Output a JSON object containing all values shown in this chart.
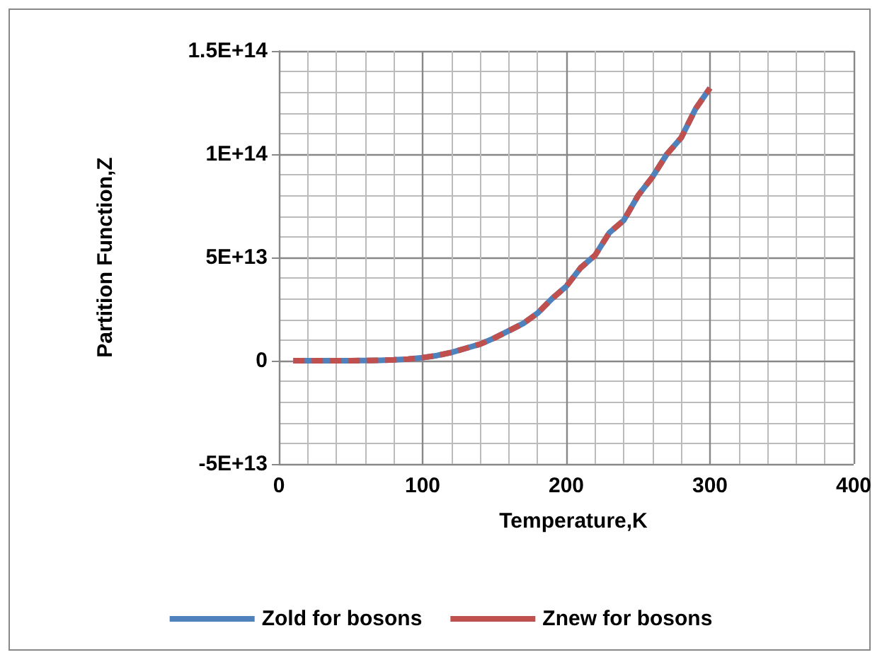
{
  "chart_data": {
    "type": "line",
    "xlabel": "Temperature,K",
    "ylabel": "Partition Function,Z",
    "x": [
      10,
      20,
      30,
      40,
      50,
      60,
      70,
      80,
      90,
      100,
      110,
      120,
      130,
      140,
      150,
      160,
      170,
      180,
      190,
      200,
      210,
      220,
      230,
      240,
      250,
      260,
      270,
      280,
      290,
      300
    ],
    "series": [
      {
        "name": "Zold for bosons",
        "color": "#4f81bd",
        "line_style": "solid",
        "values": [
          0,
          0,
          0,
          0,
          0,
          100000000000.0,
          200000000000.0,
          400000000000.0,
          800000000000.0,
          1500000000000.0,
          2500000000000.0,
          4000000000000.0,
          6000000000000.0,
          8000000000000.0,
          11000000000000.0,
          14500000000000.0,
          18000000000000.0,
          23000000000000.0,
          30000000000000.0,
          36000000000000.0,
          45000000000000.0,
          51000000000000.0,
          62000000000000.0,
          68000000000000.0,
          80000000000000.0,
          89000000000000.0,
          100000000000000.0,
          108000000000000.0,
          122000000000000.0,
          132000000000000.0
        ]
      },
      {
        "name": "Znew for bosons",
        "color": "#c0504d",
        "line_style": "dashed",
        "values": [
          0,
          0,
          0,
          0,
          0,
          100000000000.0,
          200000000000.0,
          400000000000.0,
          800000000000.0,
          1500000000000.0,
          2500000000000.0,
          4000000000000.0,
          6000000000000.0,
          8000000000000.0,
          11000000000000.0,
          14500000000000.0,
          18000000000000.0,
          23000000000000.0,
          30000000000000.0,
          36000000000000.0,
          45000000000000.0,
          51000000000000.0,
          62000000000000.0,
          68000000000000.0,
          80000000000000.0,
          89000000000000.0,
          100000000000000.0,
          108000000000000.0,
          122000000000000.0,
          132000000000000.0
        ]
      }
    ],
    "xlim": [
      0,
      400
    ],
    "xticks": [
      0,
      100,
      200,
      300,
      400
    ],
    "ylim": [
      -50000000000000.0,
      150000000000000.0
    ],
    "yticks": [
      {
        "value": -50000000000000.0,
        "label": "-5E+13"
      },
      0,
      {
        "value": 50000000000000.0,
        "label": "5E+13"
      },
      {
        "value": 100000000000000.0,
        "label": "1E+14"
      },
      {
        "value": 150000000000000.0,
        "label": "1.5E+14"
      }
    ],
    "grid": true,
    "legend": "bottom",
    "marker": "none"
  }
}
